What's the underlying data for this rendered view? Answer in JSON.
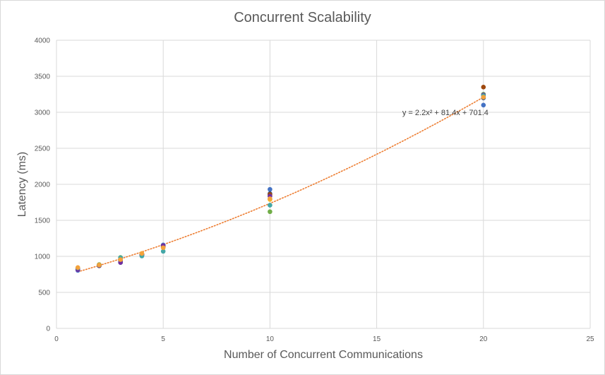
{
  "chart_data": {
    "type": "scatter",
    "title": "Concurrent Scalability",
    "xlabel": "Number of Concurrent Communications",
    "ylabel": "Latency (ms)",
    "xlim": [
      0,
      25
    ],
    "ylim": [
      0,
      4000
    ],
    "x_ticks": [
      "0",
      "5",
      "10",
      "15",
      "20",
      "25"
    ],
    "y_ticks": [
      "0",
      "500",
      "1000",
      "1500",
      "2000",
      "2500",
      "3000",
      "3500",
      "4000"
    ],
    "grid": true,
    "legend": "none",
    "x": [
      1,
      2,
      3,
      4,
      5,
      10,
      20
    ],
    "series": [
      {
        "color": "#4472c4",
        "values": [
          805,
          872,
          935,
          1010,
          1150,
          1930,
          3100
        ]
      },
      {
        "color": "#ed7d31",
        "values": [
          830,
          868,
          950,
          1030,
          1125,
          1795,
          3220
        ]
      },
      {
        "color": "#a5a5a5",
        "values": [
          820,
          880,
          960,
          1020,
          1140,
          1850,
          3230
        ]
      },
      {
        "color": "#ffc000",
        "values": [
          838,
          885,
          965,
          1040,
          1130,
          1790,
          3240
        ]
      },
      {
        "color": "#5b9bd5",
        "values": [
          812,
          878,
          940,
          1025,
          1160,
          1840,
          3250
        ]
      },
      {
        "color": "#70ad47",
        "values": [
          832,
          885,
          985,
          1035,
          1130,
          1620,
          3250
        ]
      },
      {
        "color": "#264478",
        "values": [
          820,
          870,
          915,
          1020,
          1150,
          1870,
          3200
        ]
      },
      {
        "color": "#9e480e",
        "values": [
          825,
          880,
          950,
          1030,
          1140,
          1860,
          3350
        ]
      },
      {
        "color": "#7030a0",
        "values": [
          815,
          875,
          915,
          1020,
          1150,
          1835,
          3240
        ]
      },
      {
        "color": "#43a7a7",
        "values": [
          840,
          880,
          980,
          1005,
          1070,
          1710,
          3230
        ]
      },
      {
        "color": "#f4a23b",
        "values": [
          845,
          880,
          955,
          1040,
          1120,
          1800,
          3210
        ]
      }
    ],
    "trendline": {
      "type": "polynomial",
      "color": "#ed7d31",
      "coefficients": [
        2.2,
        81.4,
        701.4
      ],
      "x_range": [
        1,
        20
      ],
      "equation": "y = 2.2x² + 81.4x + 701.4",
      "label_at": [
        16.2,
        3000
      ]
    }
  }
}
